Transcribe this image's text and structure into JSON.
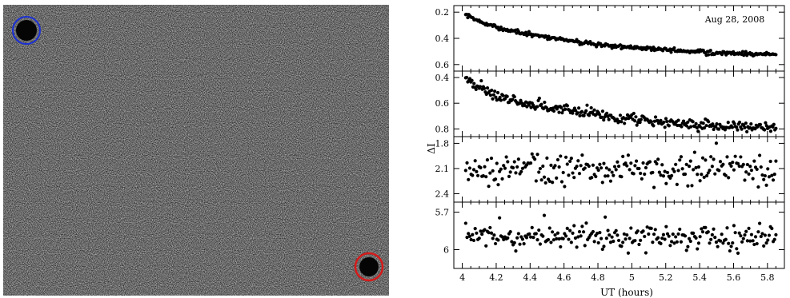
{
  "image_panel": {
    "description_icons": [
      "reference-star-circle",
      "target-star-circle"
    ],
    "colors": {
      "ref_circle": "#1a2fd6",
      "target_circle": "#d61a1a"
    }
  },
  "chart_data": [
    {
      "type": "scatter",
      "annotation": "Aug 28, 2008",
      "xlim": [
        3.95,
        5.9
      ],
      "ylim": [
        0.15,
        0.65
      ],
      "y_inverted": true,
      "yticks": [
        "0.2",
        "0.4",
        "0.6"
      ],
      "series": [
        {
          "trend": [
            [
              4.02,
              0.21
            ],
            [
              4.1,
              0.27
            ],
            [
              4.2,
              0.32
            ],
            [
              4.3,
              0.35
            ],
            [
              4.5,
              0.39
            ],
            [
              4.7,
              0.43
            ],
            [
              4.9,
              0.46
            ],
            [
              5.1,
              0.48
            ],
            [
              5.3,
              0.5
            ],
            [
              5.5,
              0.51
            ],
            [
              5.7,
              0.52
            ],
            [
              5.85,
              0.52
            ]
          ],
          "scatter": 0.008
        }
      ]
    },
    {
      "type": "scatter",
      "xlim": [
        3.95,
        5.9
      ],
      "ylim": [
        0.35,
        0.86
      ],
      "y_inverted": true,
      "yticks": [
        "0.4",
        "0.6",
        "0.8"
      ],
      "series": [
        {
          "trend": [
            [
              4.02,
              0.41
            ],
            [
              4.1,
              0.48
            ],
            [
              4.2,
              0.54
            ],
            [
              4.3,
              0.58
            ],
            [
              4.5,
              0.63
            ],
            [
              4.7,
              0.67
            ],
            [
              4.9,
              0.71
            ],
            [
              5.1,
              0.74
            ],
            [
              5.3,
              0.76
            ],
            [
              5.5,
              0.77
            ],
            [
              5.7,
              0.78
            ],
            [
              5.85,
              0.79
            ]
          ],
          "scatter": 0.02
        }
      ]
    },
    {
      "type": "scatter",
      "xlim": [
        3.95,
        5.9
      ],
      "ylim": [
        1.72,
        2.5
      ],
      "y_inverted": true,
      "yticks": [
        "1.8",
        "2.1",
        "2.4"
      ],
      "series": [
        {
          "trend": [
            [
              4.02,
              2.1
            ],
            [
              5.85,
              2.1
            ]
          ],
          "scatter": 0.09
        }
      ]
    },
    {
      "type": "scatter",
      "xlim": [
        3.95,
        5.9
      ],
      "ylim": [
        5.62,
        6.15
      ],
      "y_inverted": true,
      "yticks": [
        "5.7",
        "6"
      ],
      "xticks": [
        "4",
        "4.2",
        "4.4",
        "4.6",
        "4.8",
        "5",
        "5.2",
        "5.4",
        "5.6",
        "5.8"
      ],
      "xlabel": "UT (hours)",
      "series": [
        {
          "trend": [
            [
              4.02,
              5.9
            ],
            [
              5.85,
              5.9
            ]
          ],
          "scatter": 0.05
        }
      ]
    }
  ],
  "ylabel": "ΔI"
}
